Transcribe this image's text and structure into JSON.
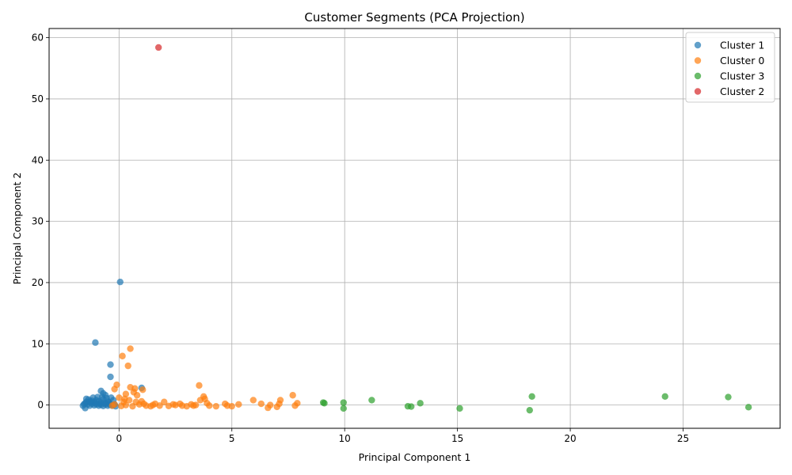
{
  "chart_data": {
    "type": "scatter",
    "title": "Customer Segments (PCA Projection)",
    "xlabel": "Principal Component 1",
    "ylabel": "Principal Component 2",
    "xlim": [
      -3.1,
      29.3
    ],
    "ylim": [
      -3.8,
      61.5
    ],
    "xticks": [
      0,
      5,
      10,
      15,
      20,
      25
    ],
    "yticks": [
      0,
      10,
      20,
      30,
      40,
      50,
      60
    ],
    "grid": true,
    "legend_position": "top-right",
    "series": [
      {
        "name": "Cluster 1",
        "color": "#1f77b4",
        "points": [
          [
            0.05,
            20.1
          ],
          [
            -1.05,
            10.2
          ],
          [
            -0.38,
            6.6
          ],
          [
            -0.38,
            4.6
          ],
          [
            1.0,
            2.8
          ],
          [
            -0.8,
            2.3
          ],
          [
            -0.7,
            1.9
          ],
          [
            -0.6,
            1.6
          ],
          [
            -0.95,
            1.3
          ],
          [
            -1.45,
            1.0
          ],
          [
            -1.35,
            0.9
          ],
          [
            -1.2,
            0.7
          ],
          [
            -1.1,
            0.5
          ],
          [
            -1.0,
            0.8
          ],
          [
            -0.9,
            0.6
          ],
          [
            -0.8,
            0.4
          ],
          [
            -0.7,
            0.9
          ],
          [
            -0.6,
            0.3
          ],
          [
            -0.5,
            0.6
          ],
          [
            -0.4,
            0.2
          ],
          [
            -1.5,
            0.3
          ],
          [
            -1.4,
            0.1
          ],
          [
            -1.3,
            -0.1
          ],
          [
            -1.2,
            0.2
          ],
          [
            -1.1,
            -0.05
          ],
          [
            -1.0,
            0.1
          ],
          [
            -0.9,
            -0.1
          ],
          [
            -0.8,
            0.05
          ],
          [
            -0.7,
            -0.15
          ],
          [
            -0.6,
            0.1
          ],
          [
            -0.5,
            -0.1
          ],
          [
            -0.4,
            0.05
          ],
          [
            -0.3,
            -0.1
          ],
          [
            -1.5,
            -0.5
          ],
          [
            -1.6,
            -0.1
          ],
          [
            -1.45,
            0.5
          ],
          [
            -1.25,
            0.45
          ],
          [
            -1.05,
            0.3
          ],
          [
            -0.85,
            0.25
          ],
          [
            -0.65,
            0.35
          ],
          [
            -0.45,
            0.45
          ],
          [
            -0.35,
            1.2
          ],
          [
            -0.55,
            1.1
          ],
          [
            -0.75,
            1.3
          ],
          [
            -1.15,
            1.2
          ],
          [
            -1.3,
            0.6
          ],
          [
            -0.2,
            0.1
          ],
          [
            -0.15,
            -0.2
          ],
          [
            -1.55,
            0.15
          ],
          [
            -0.25,
            0.8
          ]
        ]
      },
      {
        "name": "Cluster 0",
        "color": "#ff7f0e",
        "points": [
          [
            0.5,
            9.2
          ],
          [
            0.15,
            8.0
          ],
          [
            0.4,
            6.4
          ],
          [
            3.55,
            3.2
          ],
          [
            -0.1,
            3.3
          ],
          [
            0.5,
            2.9
          ],
          [
            0.7,
            2.7
          ],
          [
            1.05,
            2.5
          ],
          [
            -0.2,
            2.6
          ],
          [
            0.65,
            2.1
          ],
          [
            0.3,
            1.8
          ],
          [
            0.8,
            1.6
          ],
          [
            3.75,
            1.4
          ],
          [
            7.7,
            1.6
          ],
          [
            0.0,
            1.2
          ],
          [
            3.8,
            1.0
          ],
          [
            3.6,
            0.8
          ],
          [
            5.95,
            0.8
          ],
          [
            7.15,
            0.8
          ],
          [
            2.0,
            0.5
          ],
          [
            1.0,
            0.6
          ],
          [
            0.2,
            0.5
          ],
          [
            4.7,
            0.2
          ],
          [
            6.3,
            0.2
          ],
          [
            7.9,
            0.3
          ],
          [
            7.1,
            0.2
          ],
          [
            6.7,
            0.0
          ],
          [
            7.0,
            -0.3
          ],
          [
            5.3,
            0.1
          ],
          [
            4.8,
            -0.1
          ],
          [
            4.3,
            -0.2
          ],
          [
            6.6,
            -0.45
          ],
          [
            7.8,
            -0.1
          ],
          [
            5.0,
            -0.2
          ],
          [
            4.0,
            -0.1
          ],
          [
            3.2,
            0.1
          ],
          [
            2.8,
            -0.1
          ],
          [
            2.5,
            0.0
          ],
          [
            2.2,
            -0.15
          ],
          [
            1.8,
            -0.1
          ],
          [
            1.5,
            0.0
          ],
          [
            1.2,
            -0.1
          ],
          [
            0.9,
            0.1
          ],
          [
            0.6,
            -0.2
          ],
          [
            0.3,
            0.0
          ],
          [
            0.1,
            -0.15
          ],
          [
            -0.2,
            0.1
          ],
          [
            -0.3,
            -0.1
          ],
          [
            1.6,
            0.2
          ],
          [
            2.4,
            0.1
          ],
          [
            3.0,
            -0.2
          ],
          [
            3.4,
            0.0
          ],
          [
            3.9,
            0.3
          ],
          [
            1.1,
            0.2
          ],
          [
            0.75,
            0.5
          ],
          [
            0.45,
            0.8
          ],
          [
            0.25,
            1.0
          ],
          [
            1.4,
            -0.2
          ],
          [
            2.7,
            0.2
          ],
          [
            3.3,
            -0.1
          ]
        ]
      },
      {
        "name": "Cluster 3",
        "color": "#2ca02c",
        "points": [
          [
            9.05,
            0.4
          ],
          [
            9.1,
            0.3
          ],
          [
            9.95,
            0.4
          ],
          [
            9.95,
            -0.55
          ],
          [
            11.2,
            0.8
          ],
          [
            12.8,
            -0.2
          ],
          [
            12.95,
            -0.25
          ],
          [
            13.35,
            0.3
          ],
          [
            15.1,
            -0.55
          ],
          [
            18.3,
            1.4
          ],
          [
            18.2,
            -0.85
          ],
          [
            24.2,
            1.4
          ],
          [
            27.0,
            1.3
          ],
          [
            27.9,
            -0.35
          ]
        ]
      },
      {
        "name": "Cluster 2",
        "color": "#d62728",
        "points": [
          [
            1.75,
            58.4
          ]
        ]
      }
    ]
  }
}
